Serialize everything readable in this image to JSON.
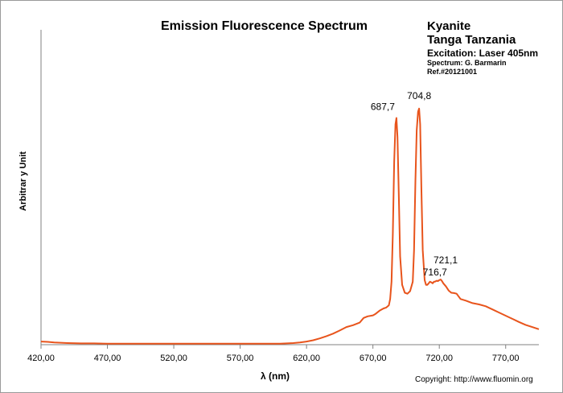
{
  "chart_data": {
    "type": "line",
    "title": "Emission Fluorescence Spectrum",
    "xlabel": "λ (nm)",
    "ylabel": "Arbitrar y Unit",
    "xlim": [
      420,
      795
    ],
    "ylim": [
      0,
      100
    ],
    "xticks": [
      "420,00",
      "470,00",
      "520,00",
      "570,00",
      "620,00",
      "670,00",
      "720,00",
      "770,00"
    ],
    "grid": false,
    "line_color": "#e8541c",
    "series": [
      {
        "x": [
          420,
          425,
          430,
          440,
          450,
          460,
          470,
          480,
          490,
          500,
          510,
          520,
          530,
          540,
          550,
          560,
          570,
          580,
          590,
          600,
          605,
          610,
          615,
          620,
          625,
          630,
          635,
          640,
          645,
          650,
          655,
          660,
          663,
          666,
          670,
          672,
          675,
          678,
          680,
          682,
          683,
          684,
          685,
          686,
          687,
          687.7,
          688.5,
          689.5,
          690.5,
          692,
          694,
          696,
          698,
          700,
          701,
          702,
          703,
          704,
          704.8,
          705.6,
          706.5,
          707.5,
          709,
          710,
          711,
          712,
          713,
          714,
          715,
          716,
          716.7,
          718,
          719,
          720,
          721.1,
          722,
          723,
          725,
          727,
          729,
          731,
          733,
          736,
          740,
          745,
          750,
          755,
          760,
          765,
          770,
          775,
          780,
          785,
          790,
          795
        ],
        "y": [
          1.0,
          0.9,
          0.7,
          0.5,
          0.4,
          0.4,
          0.3,
          0.3,
          0.3,
          0.3,
          0.3,
          0.3,
          0.3,
          0.3,
          0.3,
          0.3,
          0.3,
          0.3,
          0.3,
          0.3,
          0.4,
          0.5,
          0.7,
          1.0,
          1.4,
          2.0,
          2.7,
          3.5,
          4.5,
          5.6,
          6.2,
          7.0,
          8.5,
          9.0,
          9.3,
          9.8,
          10.8,
          11.5,
          11.8,
          12.5,
          14.5,
          20.0,
          35.0,
          58.0,
          70.0,
          72.0,
          66.0,
          47.0,
          28.0,
          19.0,
          16.5,
          16.2,
          17.0,
          20.0,
          30.0,
          52.0,
          68.0,
          74.0,
          75.0,
          70.0,
          50.0,
          30.0,
          20.5,
          19.0,
          19.0,
          19.5,
          20.0,
          19.8,
          19.5,
          20.0,
          20.0,
          20.3,
          20.2,
          20.5,
          20.7,
          20.2,
          19.5,
          18.5,
          17.2,
          16.5,
          16.4,
          16.2,
          14.5,
          14.0,
          13.2,
          12.8,
          12.2,
          11.2,
          10.2,
          9.2,
          8.2,
          7.2,
          6.3,
          5.6,
          4.9
        ]
      }
    ],
    "annotations": [
      {
        "text": "687,7",
        "x": 687.7
      },
      {
        "text": "704,8",
        "x": 704.8
      },
      {
        "text": "721,1",
        "x": 721.1
      },
      {
        "text": "716,7",
        "x": 716.7
      }
    ]
  },
  "info": {
    "mineral": "Kyanite",
    "locality": "Tanga  Tanzania",
    "excitation": "Excitation:  Laser 405nm",
    "spectrum": "Spectrum: G. Barmarin",
    "ref": "Ref.#20121001"
  },
  "copyright": "Copyright: http://www.fluomin.org"
}
